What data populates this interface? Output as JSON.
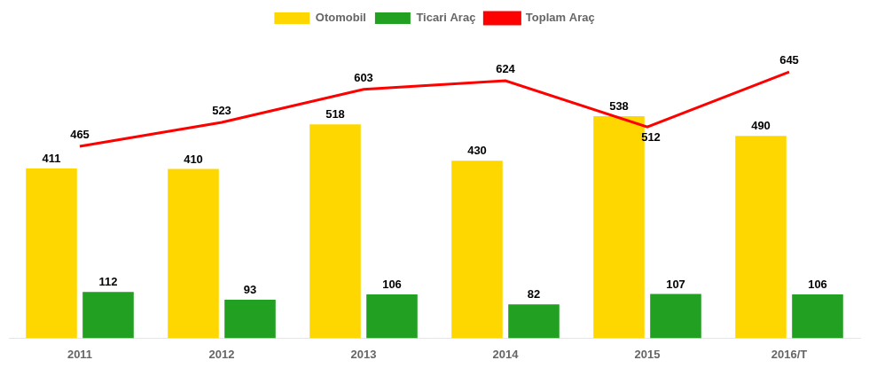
{
  "chart_data": {
    "type": "bar",
    "categories": [
      "2011",
      "2012",
      "2013",
      "2014",
      "2015",
      "2016/T"
    ],
    "series": [
      {
        "name": "Otomobil",
        "color": "#FFD700",
        "values": [
          411,
          410,
          518,
          430,
          538,
          490
        ]
      },
      {
        "name": "Ticari Araç",
        "color": "#22A022",
        "values": [
          112,
          93,
          106,
          82,
          107,
          106
        ]
      },
      {
        "name": "Toplam Araç",
        "color": "#FF0000",
        "type": "line",
        "values": [
          465,
          523,
          603,
          624,
          512,
          645
        ]
      }
    ],
    "ylim": [
      0,
      740
    ],
    "grid": false,
    "legend": "top",
    "data_labels": true,
    "tick_labels": "x"
  }
}
